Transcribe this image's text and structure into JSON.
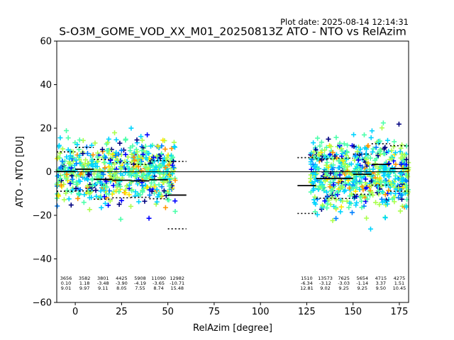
{
  "chart_data": {
    "type": "scatter",
    "title": "S-O3M_GOME_VOD_XX_M01_20250813Z ATO - NTO vs RelAzim",
    "plot_date": "Plot date: 2025-08-14 12:14:31",
    "xlabel": "RelAzim [degree]",
    "ylabel": "ATO - NTO [DU]",
    "xlim": [
      -10,
      180
    ],
    "ylim": [
      -60,
      60
    ],
    "xticks": [
      0,
      25,
      50,
      75,
      100,
      125,
      150,
      175
    ],
    "yticks": [
      -60,
      -40,
      -20,
      0,
      20,
      40,
      60
    ],
    "grid": false,
    "zero_line": 0,
    "point_clusters": [
      {
        "x_range": [
          -10,
          54
        ],
        "y_center": 0,
        "y_spread": 24
      },
      {
        "x_range": [
          127,
          180
        ],
        "y_center": -2,
        "y_spread": 26
      }
    ],
    "bins": [
      {
        "x_range": [
          -10,
          0
        ],
        "count": "3656",
        "mean": "0.10",
        "std": "9.01"
      },
      {
        "x_range": [
          0,
          10
        ],
        "count": "3582",
        "mean": "1.18",
        "std": "9.97"
      },
      {
        "x_range": [
          10,
          20
        ],
        "count": "3801",
        "mean": "-3.48",
        "std": "9.11"
      },
      {
        "x_range": [
          20,
          30
        ],
        "count": "4425",
        "mean": "-3.90",
        "std": "8.05"
      },
      {
        "x_range": [
          30,
          40
        ],
        "count": "5908",
        "mean": "-4.19",
        "std": "7.55"
      },
      {
        "x_range": [
          40,
          50
        ],
        "count": "11090",
        "mean": "-3.65",
        "std": "8.74"
      },
      {
        "x_range": [
          50,
          60
        ],
        "count": "12982",
        "mean": "-10.71",
        "std": "15.48"
      },
      {
        "x_range": [
          120,
          130
        ],
        "count": "1510",
        "mean": "-6.34",
        "std": "12.81"
      },
      {
        "x_range": [
          130,
          140
        ],
        "count": "13573",
        "mean": "-3.12",
        "std": "9.02"
      },
      {
        "x_range": [
          140,
          150
        ],
        "count": "7625",
        "mean": "-3.03",
        "std": "9.25"
      },
      {
        "x_range": [
          150,
          160
        ],
        "count": "5654",
        "mean": "-1.14",
        "std": "9.25"
      },
      {
        "x_range": [
          160,
          170
        ],
        "count": "4715",
        "mean": "3.37",
        "std": "9.50"
      },
      {
        "x_range": [
          170,
          180
        ],
        "count": "4275",
        "mean": "1.51",
        "std": "10.45"
      }
    ],
    "colormap": [
      "#00007f",
      "#0000ff",
      "#0080ff",
      "#00d4ff",
      "#4cffaa",
      "#aaff4c",
      "#ffe500",
      "#ff9400"
    ]
  }
}
